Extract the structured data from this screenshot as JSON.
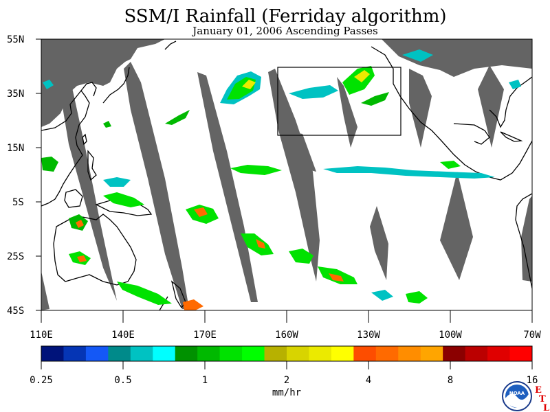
{
  "title": "SSM/I Rainfall (Ferriday algorithm)",
  "subtitle": "January 01, 2006  Ascending Passes",
  "lat_labels": [
    "55N",
    "35N",
    "15N",
    "5S",
    "25S",
    "45S"
  ],
  "lon_labels": [
    "110E",
    "140E",
    "170E",
    "160W",
    "130W",
    "100W",
    "70W"
  ],
  "colorbar": {
    "unit": "mm/hr",
    "tick_labels": [
      "0.25",
      "0.5",
      "1",
      "2",
      "4",
      "8",
      "16"
    ],
    "colors": [
      "#00137a",
      "#0535b5",
      "#1458f6",
      "#008a8a",
      "#00c2c2",
      "#00ffff",
      "#009100",
      "#00b900",
      "#00e200",
      "#00ff00",
      "#b7b100",
      "#d8d400",
      "#ebea00",
      "#ffff00",
      "#fd4d00",
      "#ff6a00",
      "#ff8d00",
      "#ffa500",
      "#8b0000",
      "#bb0000",
      "#e00000",
      "#ff0000"
    ]
  },
  "logo": {
    "text": "NOAA",
    "etl_letters": [
      "E",
      "T",
      "L"
    ]
  },
  "colors": {
    "land": "#646464",
    "coast": "#000000"
  }
}
